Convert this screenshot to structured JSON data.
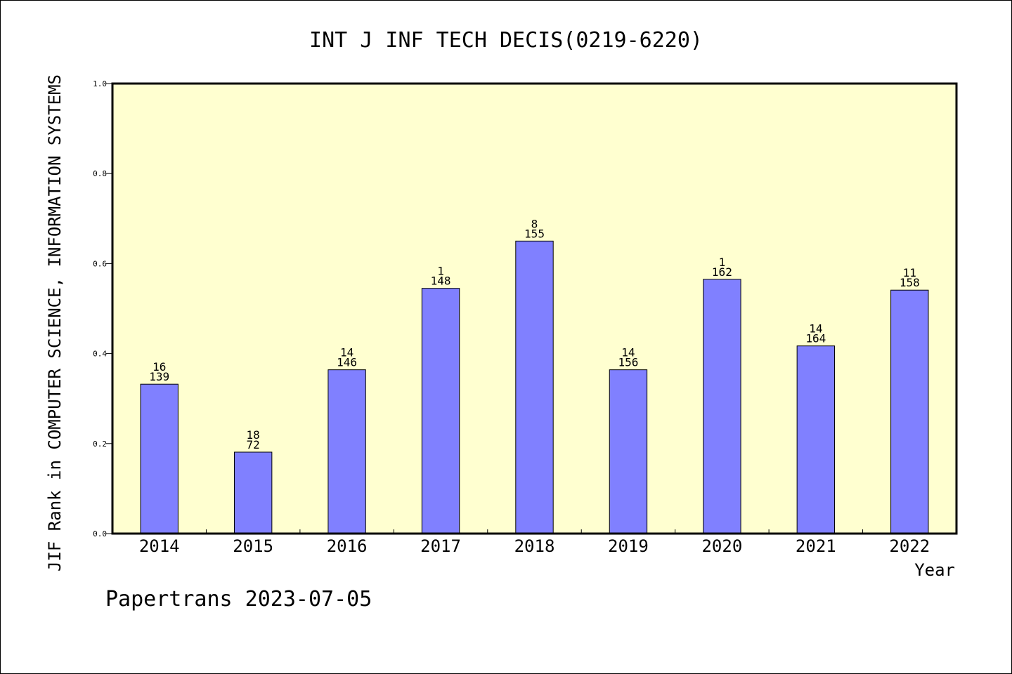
{
  "chart_data": {
    "type": "bar",
    "title": "INT J INF TECH DECIS(0219-6220)",
    "xlabel": "Year",
    "ylabel": "JIF Rank in COMPUTER SCIENCE, INFORMATION SYSTEMS",
    "ylim": [
      0,
      1.0
    ],
    "yticks": [
      "0.0",
      "0.2",
      "0.4",
      "0.6",
      "0.8",
      "1.0"
    ],
    "categories": [
      "2014",
      "2015",
      "2016",
      "2017",
      "2018",
      "2019",
      "2020",
      "2021",
      "2022"
    ],
    "values": [
      0.332,
      0.181,
      0.364,
      0.545,
      0.65,
      0.364,
      0.565,
      0.417,
      0.541
    ],
    "bar_labels_top": [
      "16",
      "18",
      "14",
      "1",
      "8",
      "14",
      "1",
      "14",
      "11"
    ],
    "bar_labels_bottom": [
      "139",
      "72",
      "146",
      "148",
      "155",
      "156",
      "162",
      "164",
      "158"
    ],
    "grid": false,
    "colors": {
      "plot_background": "#ffffd0",
      "bar_fill": "#8080ff",
      "bar_stroke": "#000000"
    }
  },
  "footer": "Papertrans 2023-07-05"
}
